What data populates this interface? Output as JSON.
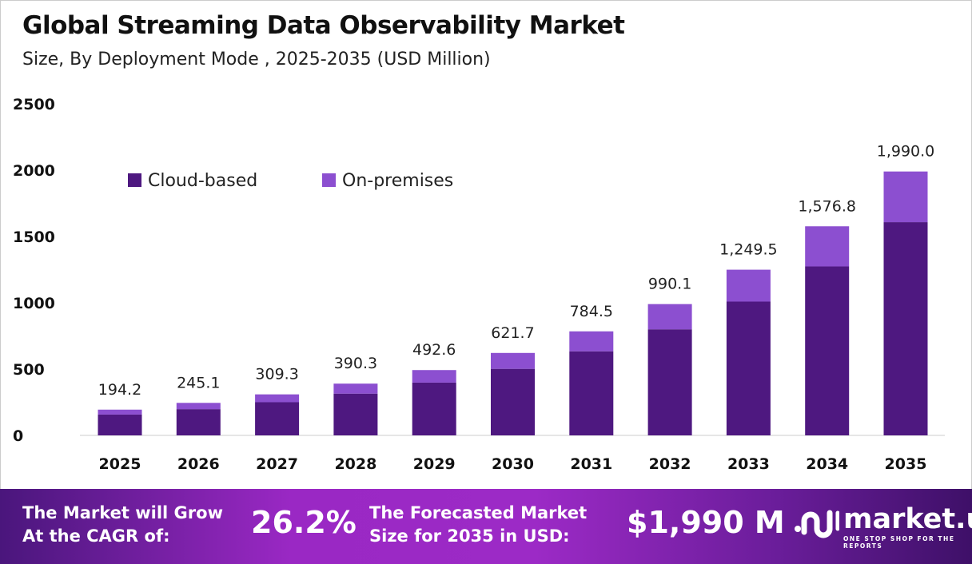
{
  "header": {
    "title": "Global Streaming Data Observability Market",
    "subtitle": "Size, By Deployment Mode , 2025-2035 (USD Million)"
  },
  "chart_data": {
    "type": "bar",
    "stacked": true,
    "categories": [
      "2025",
      "2026",
      "2027",
      "2028",
      "2029",
      "2030",
      "2031",
      "2032",
      "2033",
      "2034",
      "2035"
    ],
    "series": [
      {
        "name": "Cloud-based",
        "color": "#4e1880",
        "values": [
          157,
          198,
          250,
          315,
          398,
          502,
          634,
          800,
          1009,
          1274,
          1608
        ]
      },
      {
        "name": "On-premises",
        "color": "#8c4fd0",
        "values": [
          37.2,
          47.1,
          59.3,
          75.3,
          94.6,
          119.7,
          150.5,
          190.1,
          240.5,
          302.8,
          382.0
        ]
      }
    ],
    "totals": [
      "194.2",
      "245.1",
      "309.3",
      "390.3",
      "492.6",
      "621.7",
      "784.5",
      "990.1",
      "1,249.5",
      "1,576.8",
      "1,990.0"
    ],
    "yticks": [
      "0",
      "500",
      "1000",
      "1500",
      "2000",
      "2500"
    ],
    "ylim": [
      0,
      2500
    ],
    "grid": false,
    "legend": "top-left",
    "xlabel": "",
    "ylabel": ""
  },
  "footer": {
    "cagr_label_1": "The Market will Grow",
    "cagr_label_2": "At the CAGR of:",
    "cagr_value": "26.2%",
    "forecast_label_1": "The Forecasted Market",
    "forecast_label_2": "Size for 2035 in USD:",
    "forecast_value": "$1,990 M",
    "logo_text": "market.us",
    "logo_tagline": "ONE STOP SHOP FOR THE REPORTS"
  }
}
